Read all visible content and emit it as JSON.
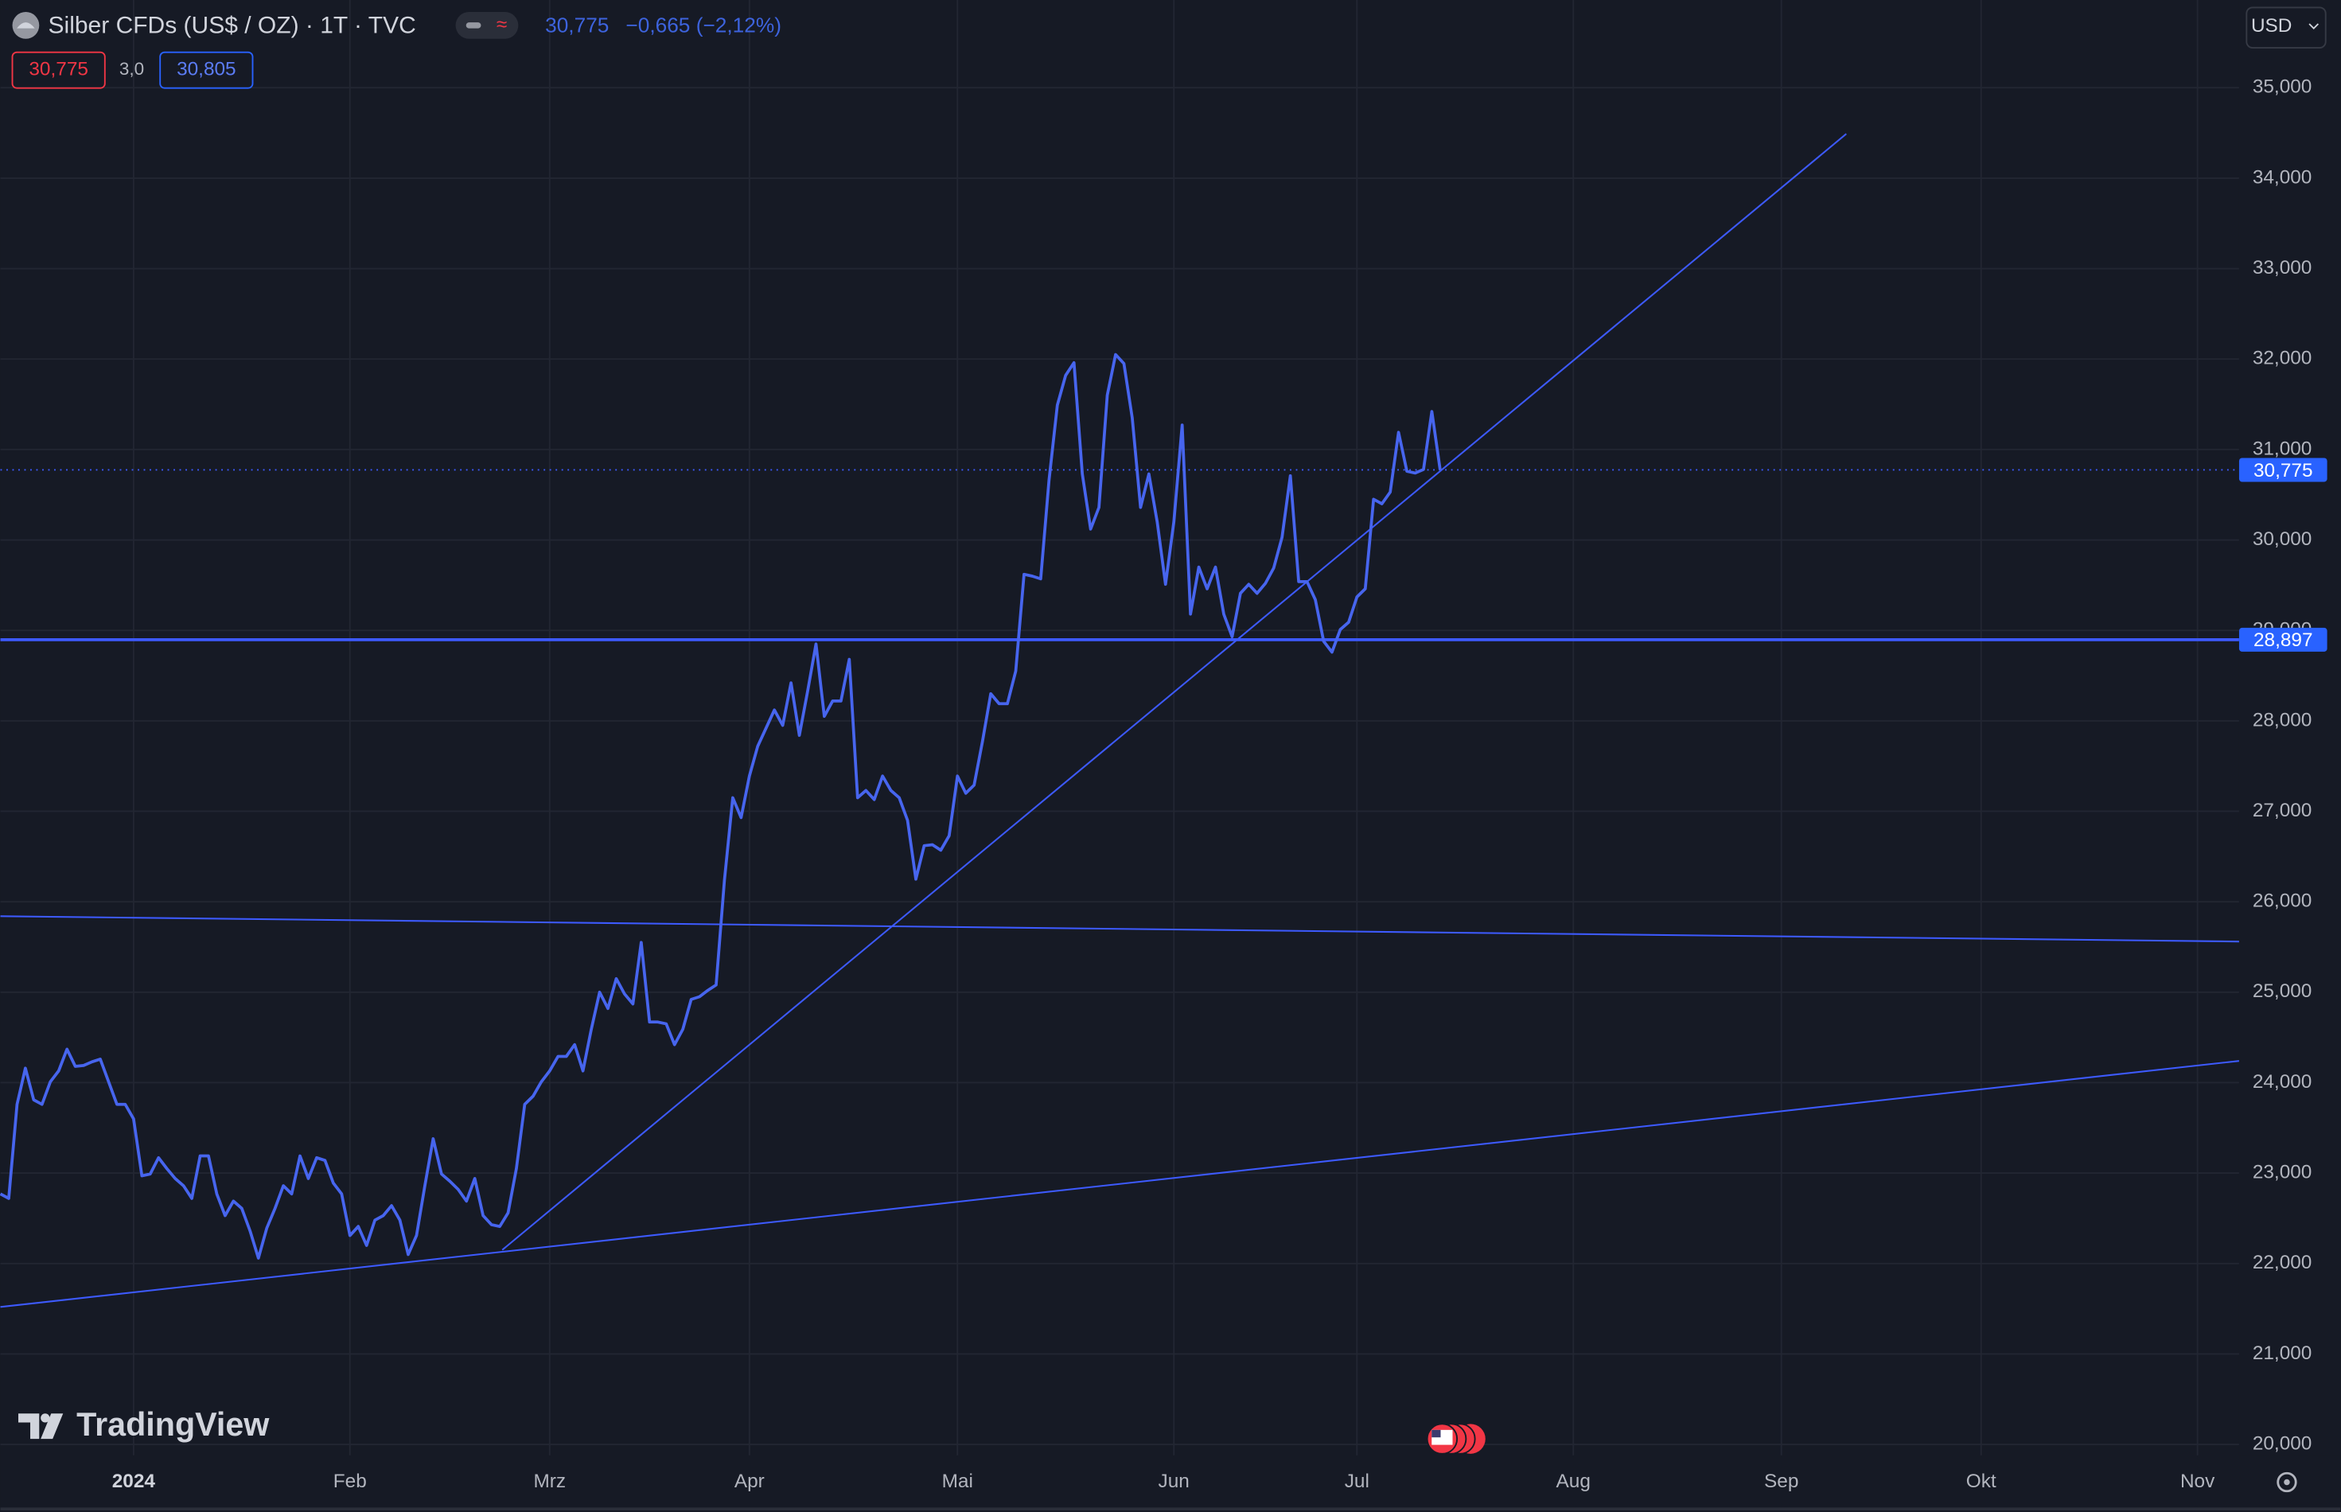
{
  "chart_data": {
    "type": "line",
    "title": "Silber CFDs (US$ / OZ) · 1T · TVC",
    "last_price": "30,775",
    "change": "−0,665 (−2,12%)",
    "bid_ask": [
      "30,775",
      "3,0",
      "30,805"
    ],
    "currency": "USD",
    "watermark": "TradingView",
    "color": "#4765ee",
    "grid": true,
    "x": [
      0,
      1,
      2,
      3,
      4,
      5,
      6,
      7,
      8,
      9,
      10,
      11,
      12,
      13,
      14,
      15,
      16,
      17,
      18,
      19,
      20,
      21,
      22,
      23,
      24,
      25,
      26,
      27,
      28,
      29,
      30,
      31,
      32,
      33,
      34,
      35,
      36,
      37,
      38,
      39,
      40,
      41,
      42,
      43,
      44,
      45,
      46,
      47,
      48,
      49,
      50,
      51,
      52,
      53,
      54,
      55,
      56,
      57,
      58,
      59,
      60,
      61,
      62,
      63,
      64,
      65,
      66,
      67,
      68,
      69,
      70,
      71,
      72,
      73,
      74,
      75,
      76,
      77,
      78,
      79,
      80,
      81,
      82,
      83,
      84,
      85,
      86,
      87,
      88,
      89,
      90,
      91,
      92,
      93,
      94,
      95,
      96,
      97,
      98,
      99,
      100,
      101,
      102,
      103,
      104,
      105,
      106,
      107,
      108,
      109,
      110,
      111,
      112,
      113,
      114,
      115,
      116,
      117,
      118,
      119,
      120,
      121,
      122,
      123,
      124,
      125,
      126,
      127,
      128,
      129,
      130,
      131,
      132,
      133,
      134,
      135,
      136,
      137,
      138,
      139,
      140,
      141,
      142,
      143,
      144,
      145,
      146,
      147,
      148,
      149,
      150,
      151,
      152,
      153,
      154,
      155,
      156,
      157,
      158,
      159,
      160,
      161,
      162,
      163,
      164,
      165,
      166,
      167,
      168,
      169,
      170,
      171,
      172,
      173
    ],
    "values": [
      22770,
      22720,
      23760,
      24160,
      23810,
      23760,
      24010,
      24130,
      24370,
      24180,
      24190,
      24230,
      24260,
      24010,
      23760,
      23760,
      23600,
      22970,
      22990,
      23170,
      23050,
      22940,
      22860,
      22720,
      23190,
      23190,
      22770,
      22530,
      22690,
      22610,
      22360,
      22060,
      22390,
      22610,
      22860,
      22770,
      23190,
      22940,
      23170,
      23140,
      22890,
      22770,
      22310,
      22410,
      22200,
      22480,
      22530,
      22640,
      22480,
      22100,
      22310,
      22860,
      23380,
      22990,
      22910,
      22820,
      22690,
      22940,
      22530,
      22430,
      22410,
      22560,
      23050,
      23760,
      23850,
      24010,
      24130,
      24290,
      24290,
      24420,
      24130,
      24590,
      25000,
      24820,
      25150,
      24980,
      24870,
      25550,
      24670,
      24670,
      24650,
      24420,
      24590,
      24920,
      24950,
      25020,
      25080,
      26240,
      27150,
      26930,
      27390,
      27720,
      27920,
      28120,
      27950,
      28420,
      27840,
      28330,
      28850,
      28050,
      28220,
      28220,
      28680,
      27150,
      27230,
      27130,
      27390,
      27230,
      27150,
      26900,
      26250,
      26620,
      26630,
      26570,
      26730,
      27390,
      27200,
      27290,
      27770,
      28300,
      28190,
      28190,
      28550,
      29620,
      29600,
      29570,
      30660,
      31490,
      31820,
      31960,
      30730,
      30120,
      30360,
      31600,
      32050,
      31950,
      31350,
      30360,
      30730,
      30200,
      29510,
      30200,
      31270,
      29180,
      29700,
      29460,
      29700,
      29180,
      28930,
      29410,
      29510,
      29410,
      29520,
      29690,
      30030,
      30710,
      29540,
      29540,
      29340,
      28880,
      28760,
      29010,
      29090,
      29370,
      29460,
      30450,
      30400,
      30530,
      31190,
      30760,
      30740,
      30780,
      31420,
      30775
    ],
    "xlim": [
      0,
      269
    ],
    "xticks": [
      {
        "value": 16,
        "label": "2024"
      },
      {
        "value": 42,
        "label": "Feb"
      },
      {
        "value": 66,
        "label": "Mrz"
      },
      {
        "value": 90,
        "label": "Apr"
      },
      {
        "value": 115,
        "label": "Mai"
      },
      {
        "value": 141,
        "label": "Jun"
      },
      {
        "value": 163,
        "label": "Jul"
      },
      {
        "value": 189,
        "label": "Aug"
      },
      {
        "value": 214,
        "label": "Sep"
      },
      {
        "value": 238,
        "label": "Okt"
      },
      {
        "value": 264,
        "label": "Nov"
      }
    ],
    "ylim": [
      19880,
      35970
    ],
    "yticks": [
      {
        "value": 20000,
        "label": "20,000"
      },
      {
        "value": 21000,
        "label": "21,000"
      },
      {
        "value": 22000,
        "label": "22,000"
      },
      {
        "value": 23000,
        "label": "23,000"
      },
      {
        "value": 24000,
        "label": "24,000"
      },
      {
        "value": 25000,
        "label": "25,000"
      },
      {
        "value": 26000,
        "label": "26,000"
      },
      {
        "value": 27000,
        "label": "27,000"
      },
      {
        "value": 28000,
        "label": "28,000"
      },
      {
        "value": 29000,
        "label": "29,000"
      },
      {
        "value": 30000,
        "label": "30,000"
      },
      {
        "value": 31000,
        "label": "31,000"
      },
      {
        "value": 32000,
        "label": "32,000"
      },
      {
        "value": 33000,
        "label": "33,000"
      },
      {
        "value": 34000,
        "label": "34,000"
      },
      {
        "value": 35000,
        "label": "35,000"
      }
    ],
    "trend_lines": [
      {
        "x": [
          60.3,
          221.8
        ],
        "y": [
          22150,
          34490
        ]
      },
      {
        "x": [
          0,
          269
        ],
        "y": [
          25840,
          25560
        ]
      },
      {
        "x": [
          0,
          269
        ],
        "y": [
          21520,
          24240
        ]
      }
    ],
    "horizontal_line": {
      "value": 28897,
      "label": "28,897"
    },
    "price_line": {
      "value": 30775,
      "label": "30,775"
    }
  }
}
